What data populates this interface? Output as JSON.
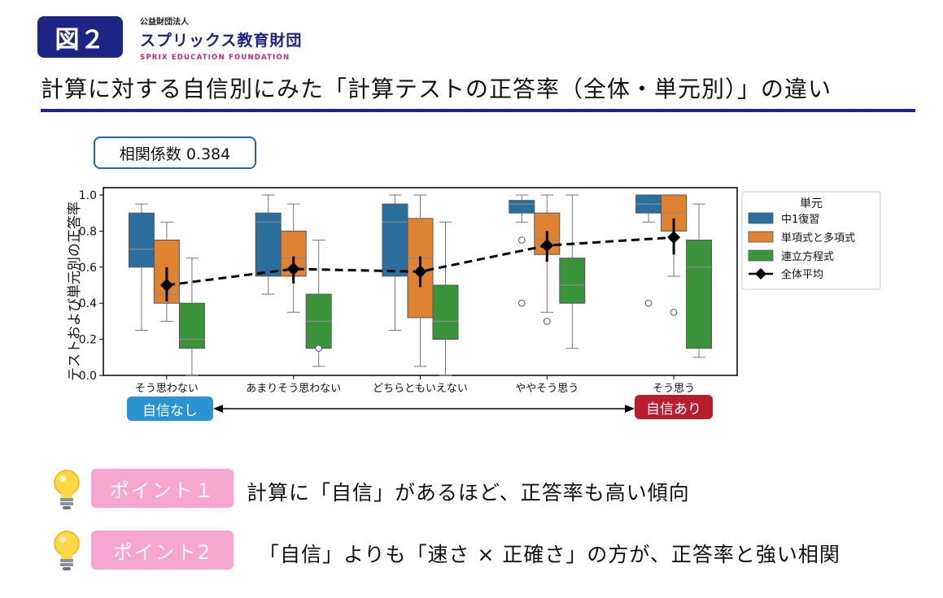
{
  "header": {
    "figure_label": "図２",
    "org_small": "公益財団法人",
    "org_name": "スプリックス教育財団",
    "org_en": "SPRIX EDUCATION FOUNDATION"
  },
  "title": "計算に対する自信別にみた「計算テストの正答率（全体・単元別）」の違い",
  "correlation": "相関係数 0.384",
  "chart_data": {
    "type": "box",
    "ylabel": "テストおよび単元別の正答率",
    "ylim": [
      0,
      1.0
    ],
    "yticks": [
      "0.0",
      "0.2",
      "0.4",
      "0.6",
      "0.8",
      "1.0"
    ],
    "categories": [
      "そう思わない",
      "あまりそう思わない",
      "どちらともいえない",
      "ややそう思う",
      "そう思う"
    ],
    "legend_title": "単元",
    "legend_position": "right",
    "series": [
      {
        "name": "中1復習",
        "color": "#2a6f9e",
        "boxes": [
          {
            "whisker_low": 0.25,
            "q1": 0.6,
            "median": 0.7,
            "q3": 0.9,
            "whisker_high": 0.95,
            "outliers": []
          },
          {
            "whisker_low": 0.45,
            "q1": 0.55,
            "median": 0.85,
            "q3": 0.9,
            "whisker_high": 1.0,
            "outliers": []
          },
          {
            "whisker_low": 0.25,
            "q1": 0.55,
            "median": 0.85,
            "q3": 0.95,
            "whisker_high": 1.0,
            "outliers": []
          },
          {
            "whisker_low": 0.85,
            "q1": 0.9,
            "median": 0.95,
            "q3": 0.97,
            "whisker_high": 1.0,
            "outliers": [
              0.75,
              0.4
            ]
          },
          {
            "whisker_low": 0.85,
            "q1": 0.9,
            "median": 0.95,
            "q3": 1.0,
            "whisker_high": 1.0,
            "outliers": [
              0.4
            ]
          }
        ]
      },
      {
        "name": "単項式と多項式",
        "color": "#df8331",
        "boxes": [
          {
            "whisker_low": 0.3,
            "q1": 0.4,
            "median": 0.45,
            "q3": 0.75,
            "whisker_high": 0.85,
            "outliers": []
          },
          {
            "whisker_low": 0.35,
            "q1": 0.55,
            "median": 0.65,
            "q3": 0.8,
            "whisker_high": 0.95,
            "outliers": []
          },
          {
            "whisker_low": 0.05,
            "q1": 0.32,
            "median": 0.65,
            "q3": 0.87,
            "whisker_high": 1.0,
            "outliers": []
          },
          {
            "whisker_low": 0.35,
            "q1": 0.67,
            "median": 0.75,
            "q3": 0.9,
            "whisker_high": 1.0,
            "outliers": [
              0.3
            ]
          },
          {
            "whisker_low": 0.55,
            "q1": 0.8,
            "median": 0.9,
            "q3": 1.0,
            "whisker_high": 1.0,
            "outliers": [
              0.35
            ]
          }
        ]
      },
      {
        "name": "連立方程式",
        "color": "#3a953a",
        "boxes": [
          {
            "whisker_low": 0.0,
            "q1": 0.15,
            "median": 0.2,
            "q3": 0.4,
            "whisker_high": 0.65,
            "outliers": []
          },
          {
            "whisker_low": 0.05,
            "q1": 0.15,
            "median": 0.3,
            "q3": 0.45,
            "whisker_high": 0.75,
            "outliers": [
              0.15
            ]
          },
          {
            "whisker_low": 0.0,
            "q1": 0.2,
            "median": 0.3,
            "q3": 0.5,
            "whisker_high": 0.85,
            "outliers": []
          },
          {
            "whisker_low": 0.15,
            "q1": 0.4,
            "median": 0.5,
            "q3": 0.65,
            "whisker_high": 1.0,
            "outliers": []
          },
          {
            "whisker_low": 0.1,
            "q1": 0.15,
            "median": 0.6,
            "q3": 0.75,
            "whisker_high": 0.95,
            "outliers": []
          }
        ]
      }
    ],
    "overall_mean": {
      "name": "全体平均",
      "values": [
        0.5,
        0.59,
        0.575,
        0.72,
        0.765
      ],
      "error_low": [
        0.41,
        0.51,
        0.49,
        0.63,
        0.67
      ],
      "error_high": [
        0.6,
        0.66,
        0.66,
        0.8,
        0.87
      ]
    }
  },
  "confidence_axis": {
    "low": "自信なし",
    "high": "自信あり"
  },
  "points": [
    {
      "label": "ポイント１",
      "text": "計算に「自信」があるほど、正答率も高い傾向"
    },
    {
      "label": "ポイント2",
      "text": "「自信」よりも「速さ × 正確さ」の方が、正答率と強い相関"
    }
  ]
}
